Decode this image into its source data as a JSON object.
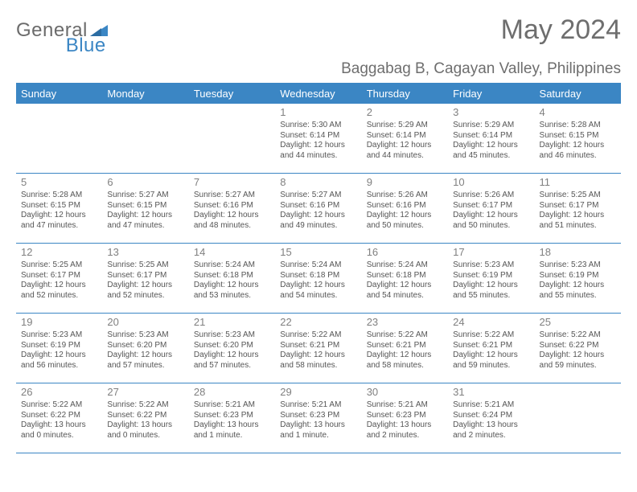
{
  "logo": {
    "word1": "General",
    "word2": "Blue"
  },
  "title": "May 2024",
  "location": "Baggabag B, Cagayan Valley, Philippines",
  "colors": {
    "accent": "#3b86c4",
    "headerText": "#6e6e6e",
    "bodyText": "#555555",
    "dayNum": "#808080",
    "dowText": "#ffffff",
    "bg": "#ffffff"
  },
  "dow": [
    "Sunday",
    "Monday",
    "Tuesday",
    "Wednesday",
    "Thursday",
    "Friday",
    "Saturday"
  ],
  "labels": {
    "sunrise": "Sunrise:",
    "sunset": "Sunset:",
    "daylight": "Daylight:"
  },
  "weeks": [
    [
      null,
      null,
      null,
      {
        "n": "1",
        "sr": "5:30 AM",
        "ss": "6:14 PM",
        "d1": "12 hours",
        "d2": "and 44 minutes."
      },
      {
        "n": "2",
        "sr": "5:29 AM",
        "ss": "6:14 PM",
        "d1": "12 hours",
        "d2": "and 44 minutes."
      },
      {
        "n": "3",
        "sr": "5:29 AM",
        "ss": "6:14 PM",
        "d1": "12 hours",
        "d2": "and 45 minutes."
      },
      {
        "n": "4",
        "sr": "5:28 AM",
        "ss": "6:15 PM",
        "d1": "12 hours",
        "d2": "and 46 minutes."
      }
    ],
    [
      {
        "n": "5",
        "sr": "5:28 AM",
        "ss": "6:15 PM",
        "d1": "12 hours",
        "d2": "and 47 minutes."
      },
      {
        "n": "6",
        "sr": "5:27 AM",
        "ss": "6:15 PM",
        "d1": "12 hours",
        "d2": "and 47 minutes."
      },
      {
        "n": "7",
        "sr": "5:27 AM",
        "ss": "6:16 PM",
        "d1": "12 hours",
        "d2": "and 48 minutes."
      },
      {
        "n": "8",
        "sr": "5:27 AM",
        "ss": "6:16 PM",
        "d1": "12 hours",
        "d2": "and 49 minutes."
      },
      {
        "n": "9",
        "sr": "5:26 AM",
        "ss": "6:16 PM",
        "d1": "12 hours",
        "d2": "and 50 minutes."
      },
      {
        "n": "10",
        "sr": "5:26 AM",
        "ss": "6:17 PM",
        "d1": "12 hours",
        "d2": "and 50 minutes."
      },
      {
        "n": "11",
        "sr": "5:25 AM",
        "ss": "6:17 PM",
        "d1": "12 hours",
        "d2": "and 51 minutes."
      }
    ],
    [
      {
        "n": "12",
        "sr": "5:25 AM",
        "ss": "6:17 PM",
        "d1": "12 hours",
        "d2": "and 52 minutes."
      },
      {
        "n": "13",
        "sr": "5:25 AM",
        "ss": "6:17 PM",
        "d1": "12 hours",
        "d2": "and 52 minutes."
      },
      {
        "n": "14",
        "sr": "5:24 AM",
        "ss": "6:18 PM",
        "d1": "12 hours",
        "d2": "and 53 minutes."
      },
      {
        "n": "15",
        "sr": "5:24 AM",
        "ss": "6:18 PM",
        "d1": "12 hours",
        "d2": "and 54 minutes."
      },
      {
        "n": "16",
        "sr": "5:24 AM",
        "ss": "6:18 PM",
        "d1": "12 hours",
        "d2": "and 54 minutes."
      },
      {
        "n": "17",
        "sr": "5:23 AM",
        "ss": "6:19 PM",
        "d1": "12 hours",
        "d2": "and 55 minutes."
      },
      {
        "n": "18",
        "sr": "5:23 AM",
        "ss": "6:19 PM",
        "d1": "12 hours",
        "d2": "and 55 minutes."
      }
    ],
    [
      {
        "n": "19",
        "sr": "5:23 AM",
        "ss": "6:19 PM",
        "d1": "12 hours",
        "d2": "and 56 minutes."
      },
      {
        "n": "20",
        "sr": "5:23 AM",
        "ss": "6:20 PM",
        "d1": "12 hours",
        "d2": "and 57 minutes."
      },
      {
        "n": "21",
        "sr": "5:23 AM",
        "ss": "6:20 PM",
        "d1": "12 hours",
        "d2": "and 57 minutes."
      },
      {
        "n": "22",
        "sr": "5:22 AM",
        "ss": "6:21 PM",
        "d1": "12 hours",
        "d2": "and 58 minutes."
      },
      {
        "n": "23",
        "sr": "5:22 AM",
        "ss": "6:21 PM",
        "d1": "12 hours",
        "d2": "and 58 minutes."
      },
      {
        "n": "24",
        "sr": "5:22 AM",
        "ss": "6:21 PM",
        "d1": "12 hours",
        "d2": "and 59 minutes."
      },
      {
        "n": "25",
        "sr": "5:22 AM",
        "ss": "6:22 PM",
        "d1": "12 hours",
        "d2": "and 59 minutes."
      }
    ],
    [
      {
        "n": "26",
        "sr": "5:22 AM",
        "ss": "6:22 PM",
        "d1": "13 hours",
        "d2": "and 0 minutes."
      },
      {
        "n": "27",
        "sr": "5:22 AM",
        "ss": "6:22 PM",
        "d1": "13 hours",
        "d2": "and 0 minutes."
      },
      {
        "n": "28",
        "sr": "5:21 AM",
        "ss": "6:23 PM",
        "d1": "13 hours",
        "d2": "and 1 minute."
      },
      {
        "n": "29",
        "sr": "5:21 AM",
        "ss": "6:23 PM",
        "d1": "13 hours",
        "d2": "and 1 minute."
      },
      {
        "n": "30",
        "sr": "5:21 AM",
        "ss": "6:23 PM",
        "d1": "13 hours",
        "d2": "and 2 minutes."
      },
      {
        "n": "31",
        "sr": "5:21 AM",
        "ss": "6:24 PM",
        "d1": "13 hours",
        "d2": "and 2 minutes."
      },
      null
    ]
  ]
}
